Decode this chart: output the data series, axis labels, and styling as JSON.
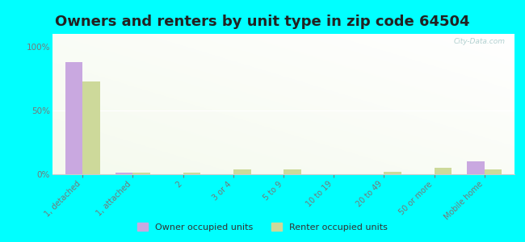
{
  "title": "Owners and renters by unit type in zip code 64504",
  "categories": [
    "1, detached",
    "1, attached",
    "2",
    "3 or 4",
    "5 to 9",
    "10 to 19",
    "20 to 49",
    "50 or more",
    "Mobile home"
  ],
  "owner_values": [
    88,
    1,
    0,
    0,
    0,
    0,
    0,
    0,
    10
  ],
  "renter_values": [
    73,
    1,
    1,
    4,
    4,
    0,
    2,
    5,
    4
  ],
  "owner_color": "#c9a8e0",
  "renter_color": "#cdd99a",
  "background_color": "#00ffff",
  "plot_bg_topleft": "#f5faee",
  "plot_bg_bottomright": "#ffffff",
  "ytick_vals": [
    0,
    50,
    100
  ],
  "ylim": [
    0,
    110
  ],
  "bar_width": 0.35,
  "legend_owner": "Owner occupied units",
  "legend_renter": "Renter occupied units",
  "title_fontsize": 13,
  "title_color": "#222222",
  "tick_color": "#777777",
  "watermark": "City-Data.com",
  "watermark_color": "#aacccc"
}
